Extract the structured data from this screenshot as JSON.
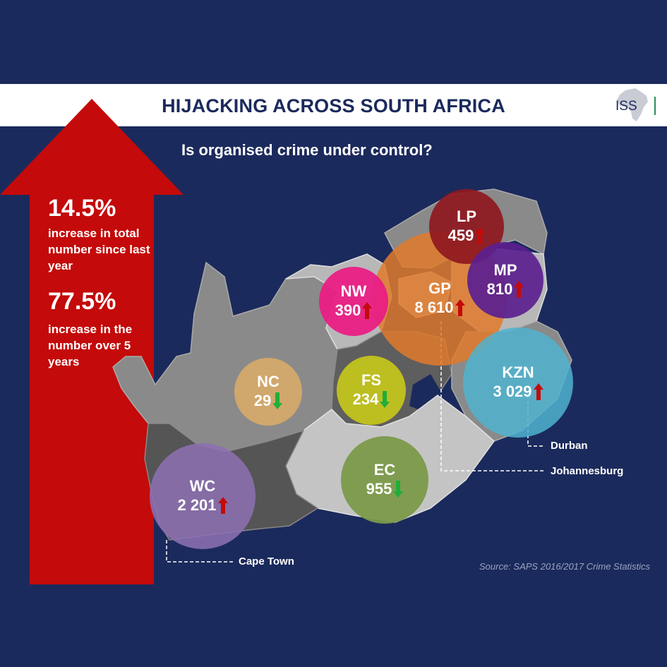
{
  "header": {
    "title": "HIJACKING ACROSS SOUTH AFRICA",
    "logo_text": "ISS"
  },
  "subtitle": "Is organised crime under control?",
  "stats": [
    {
      "value": "14.5%",
      "description": "increase in total number since last year"
    },
    {
      "value": "77.5%",
      "description": "increase in the number over 5 years"
    }
  ],
  "provinces": [
    {
      "code": "LP",
      "value": "459",
      "trend": "up",
      "color": "#8e1820"
    },
    {
      "code": "MP",
      "value": "810",
      "trend": "up",
      "color": "#5b1f8f"
    },
    {
      "code": "GP",
      "value": "8 610",
      "trend": "up",
      "color": "#e07a2b"
    },
    {
      "code": "NW",
      "value": "390",
      "trend": "up",
      "color": "#e91e84"
    },
    {
      "code": "KZN",
      "value": "3 029",
      "trend": "up",
      "color": "#4fb3cf"
    },
    {
      "code": "NC",
      "value": "29",
      "trend": "down",
      "color": "#d4a96a"
    },
    {
      "code": "FS",
      "value": "234",
      "trend": "down",
      "color": "#c5c71b"
    },
    {
      "code": "EC",
      "value": "955",
      "trend": "down",
      "color": "#7b9a4a"
    },
    {
      "code": "WC",
      "value": "2 201",
      "trend": "up",
      "color": "#8c6fb0"
    }
  ],
  "cities": [
    "Durban",
    "Johannesburg",
    "Cape Town"
  ],
  "source": "Source: SAPS 2016/2017 Crime Statistics",
  "colors": {
    "background": "#1b2a5c",
    "arrow": "#c40a0a",
    "trend_up": "#c40a0a",
    "trend_down": "#1fae3a"
  }
}
